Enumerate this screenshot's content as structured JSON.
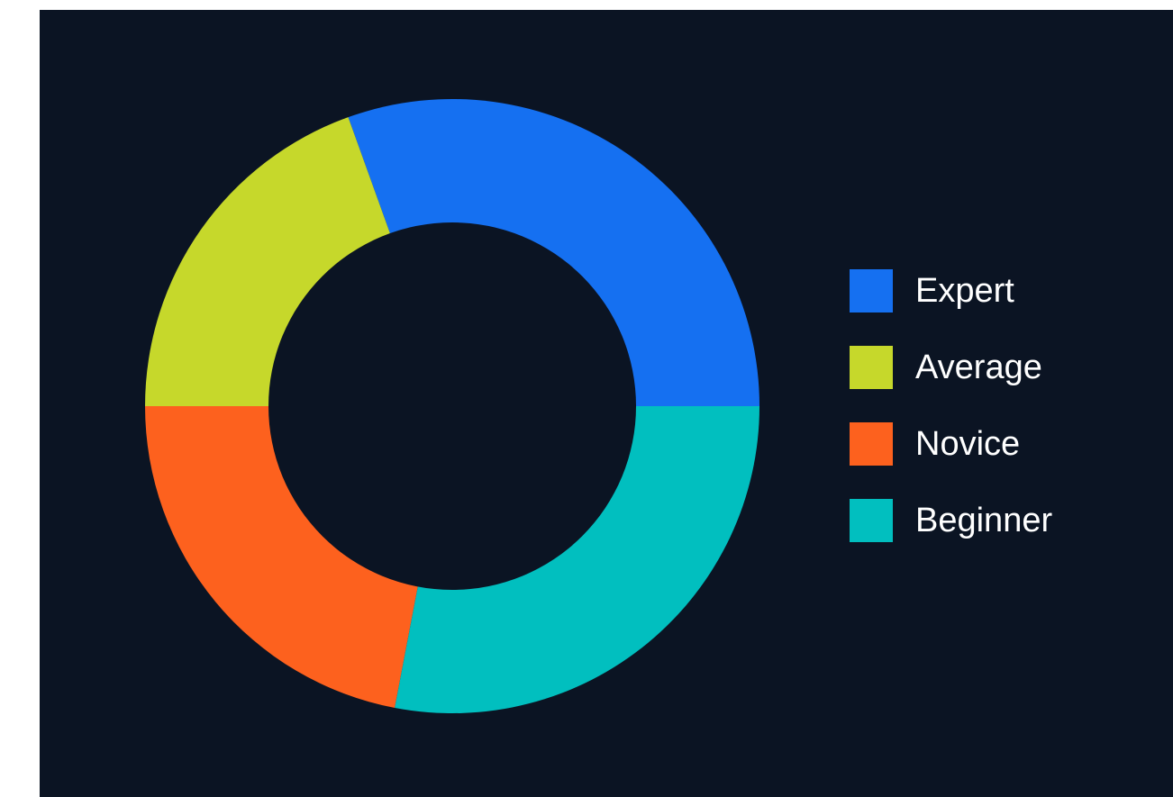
{
  "chart_data": {
    "type": "pie",
    "variant": "donut",
    "title": "",
    "categories": [
      "Expert",
      "Average",
      "Novice",
      "Beginner"
    ],
    "values": [
      30.5,
      19.5,
      22.0,
      28.0
    ],
    "unit": "%",
    "colors": [
      "#1570f1",
      "#c6d82b",
      "#fd611e",
      "#01bfbf"
    ],
    "legend_position": "right",
    "background_color": "#0b1423",
    "hole_color": "#0b1423"
  },
  "legend": {
    "items": [
      {
        "label": "Expert",
        "color": "#1570f1"
      },
      {
        "label": "Average",
        "color": "#c6d82b"
      },
      {
        "label": "Novice",
        "color": "#fd611e"
      },
      {
        "label": "Beginner",
        "color": "#01bfbf"
      }
    ]
  }
}
